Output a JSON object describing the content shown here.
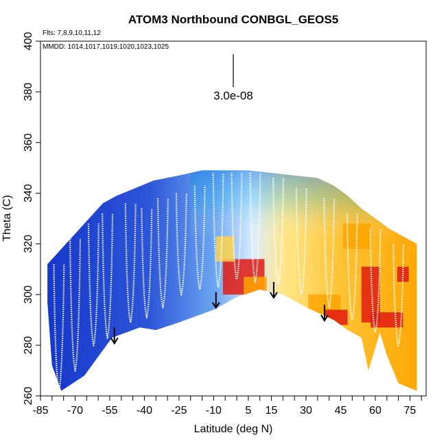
{
  "chart_data": {
    "type": "heatmap",
    "title": "ATOM3 Northbound CONBGL_GEOS5",
    "notes": {
      "flights": "Flts: 7,8,9,10,11,12",
      "dates": "MMDD: 1014,1017,1019,1020,1023,1025"
    },
    "xlabel": "Latitude (deg N)",
    "ylabel": "Theta (C)",
    "xlim": [
      -85,
      82
    ],
    "ylim": [
      260,
      400
    ],
    "x_ticks": [
      -85,
      -70,
      -55,
      -40,
      -25,
      -10,
      5,
      15,
      30,
      45,
      60,
      75
    ],
    "y_ticks": [
      260,
      280,
      300,
      320,
      340,
      360,
      380,
      400
    ],
    "scale_label": "3.0e-08",
    "colors": {
      "dark_blue": "#1536c8",
      "mid_blue": "#3a68dc",
      "light_blue": "#9fd0ff",
      "cyan": "#25b8f0",
      "pale": "#d9ecff",
      "yellow": "#ffd24a",
      "orange": "#ffa500",
      "red": "#e01a10"
    },
    "field_top_theta": [
      [
        -82,
        312
      ],
      [
        -78,
        316
      ],
      [
        -74,
        320
      ],
      [
        -70,
        324
      ],
      [
        -66,
        328
      ],
      [
        -62,
        332
      ],
      [
        -58,
        336
      ],
      [
        -52,
        339
      ],
      [
        -44,
        342
      ],
      [
        -36,
        345
      ],
      [
        -25,
        347
      ],
      [
        -15,
        349
      ],
      [
        -5,
        349
      ],
      [
        5,
        349
      ],
      [
        15,
        348
      ],
      [
        25,
        347
      ],
      [
        35,
        346
      ],
      [
        42,
        343
      ],
      [
        48,
        339
      ],
      [
        54,
        334
      ],
      [
        60,
        330
      ],
      [
        66,
        326
      ],
      [
        72,
        323
      ],
      [
        78,
        320
      ]
    ],
    "field_bottom_theta": [
      [
        -82,
        297
      ],
      [
        -80,
        272
      ],
      [
        -76,
        262
      ],
      [
        -66,
        268
      ],
      [
        -54,
        283
      ],
      [
        -48,
        285
      ],
      [
        -42,
        287
      ],
      [
        -35,
        286
      ],
      [
        -25,
        289
      ],
      [
        -10,
        294
      ],
      [
        0,
        299
      ],
      [
        10,
        302
      ],
      [
        20,
        300
      ],
      [
        30,
        295
      ],
      [
        42,
        290
      ],
      [
        48,
        286
      ],
      [
        54,
        283
      ],
      [
        57,
        270
      ],
      [
        62,
        285
      ],
      [
        65,
        276
      ],
      [
        70,
        265
      ],
      [
        78,
        262
      ],
      [
        78,
        300
      ]
    ],
    "arrows": [
      {
        "lat": -53,
        "theta": 281
      },
      {
        "lat": -9,
        "theta": 295
      },
      {
        "lat": 16,
        "theta": 299
      },
      {
        "lat": 38,
        "theta": 290
      }
    ],
    "flight_track_peaks": [
      {
        "lat": -77,
        "low": 262,
        "high": 312
      },
      {
        "lat": -70,
        "low": 270,
        "high": 322
      },
      {
        "lat": -62,
        "low": 280,
        "high": 328
      },
      {
        "lat": -56,
        "low": 283,
        "high": 332
      },
      {
        "lat": -46,
        "low": 289,
        "high": 336
      },
      {
        "lat": -39,
        "low": 291,
        "high": 334
      },
      {
        "lat": -32,
        "low": 295,
        "high": 338
      },
      {
        "lat": -24,
        "low": 300,
        "high": 340
      },
      {
        "lat": -16,
        "low": 302,
        "high": 343
      },
      {
        "lat": -8,
        "low": 303,
        "high": 348
      },
      {
        "lat": 0,
        "low": 306,
        "high": 348
      },
      {
        "lat": 8,
        "low": 305,
        "high": 348
      },
      {
        "lat": 18,
        "low": 304,
        "high": 346
      },
      {
        "lat": 28,
        "low": 300,
        "high": 342
      },
      {
        "lat": 40,
        "low": 295,
        "high": 338
      },
      {
        "lat": 50,
        "low": 290,
        "high": 332
      },
      {
        "lat": 60,
        "low": 285,
        "high": 326
      },
      {
        "lat": 70,
        "low": 280,
        "high": 320
      }
    ],
    "grid": false
  }
}
